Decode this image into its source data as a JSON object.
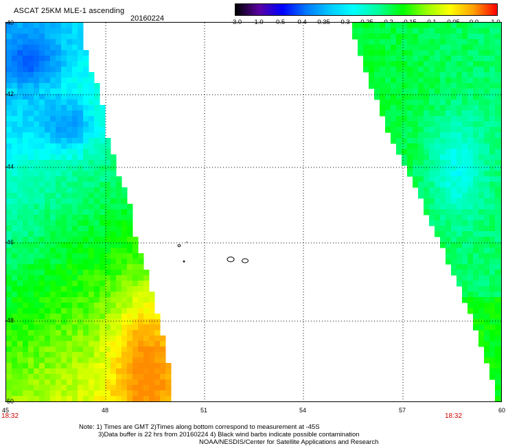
{
  "header": {
    "title": "ASCAT 25KM MLE-1 ascending",
    "date": "20160224"
  },
  "colorbar": {
    "labels": [
      "-3.0",
      "-1.0",
      "-0.5",
      "-0.4",
      "-0.35",
      "-0.3",
      "-0.25",
      "-0.2",
      "-0.15",
      "-0.1",
      "-0.05",
      "0.0",
      "1.0"
    ],
    "colors": [
      "#000000",
      "#5a00a0",
      "#0000ff",
      "#0078ff",
      "#00c8ff",
      "#00ffff",
      "#00ff96",
      "#00ff00",
      "#96ff00",
      "#ffff00",
      "#ffa000",
      "#ff0000"
    ]
  },
  "map": {
    "lat_labels": [
      "-40",
      "-42",
      "-44",
      "-46",
      "-48",
      "-50"
    ],
    "lon_labels": [
      "45",
      "48",
      "51",
      "54",
      "57",
      "60"
    ],
    "time_left": "18:32",
    "time_right": "18:32"
  },
  "notes": {
    "line1": "Note: 1) Times are GMT 2)Times along bottom correspond to measurement at -45S",
    "line2": "3)Data buffer is 22 hrs from 20160224 4) Black wind barbs indicate possible contamination",
    "line3": "NOAA/NESDIS/Center for Satellite Applications and Research"
  }
}
